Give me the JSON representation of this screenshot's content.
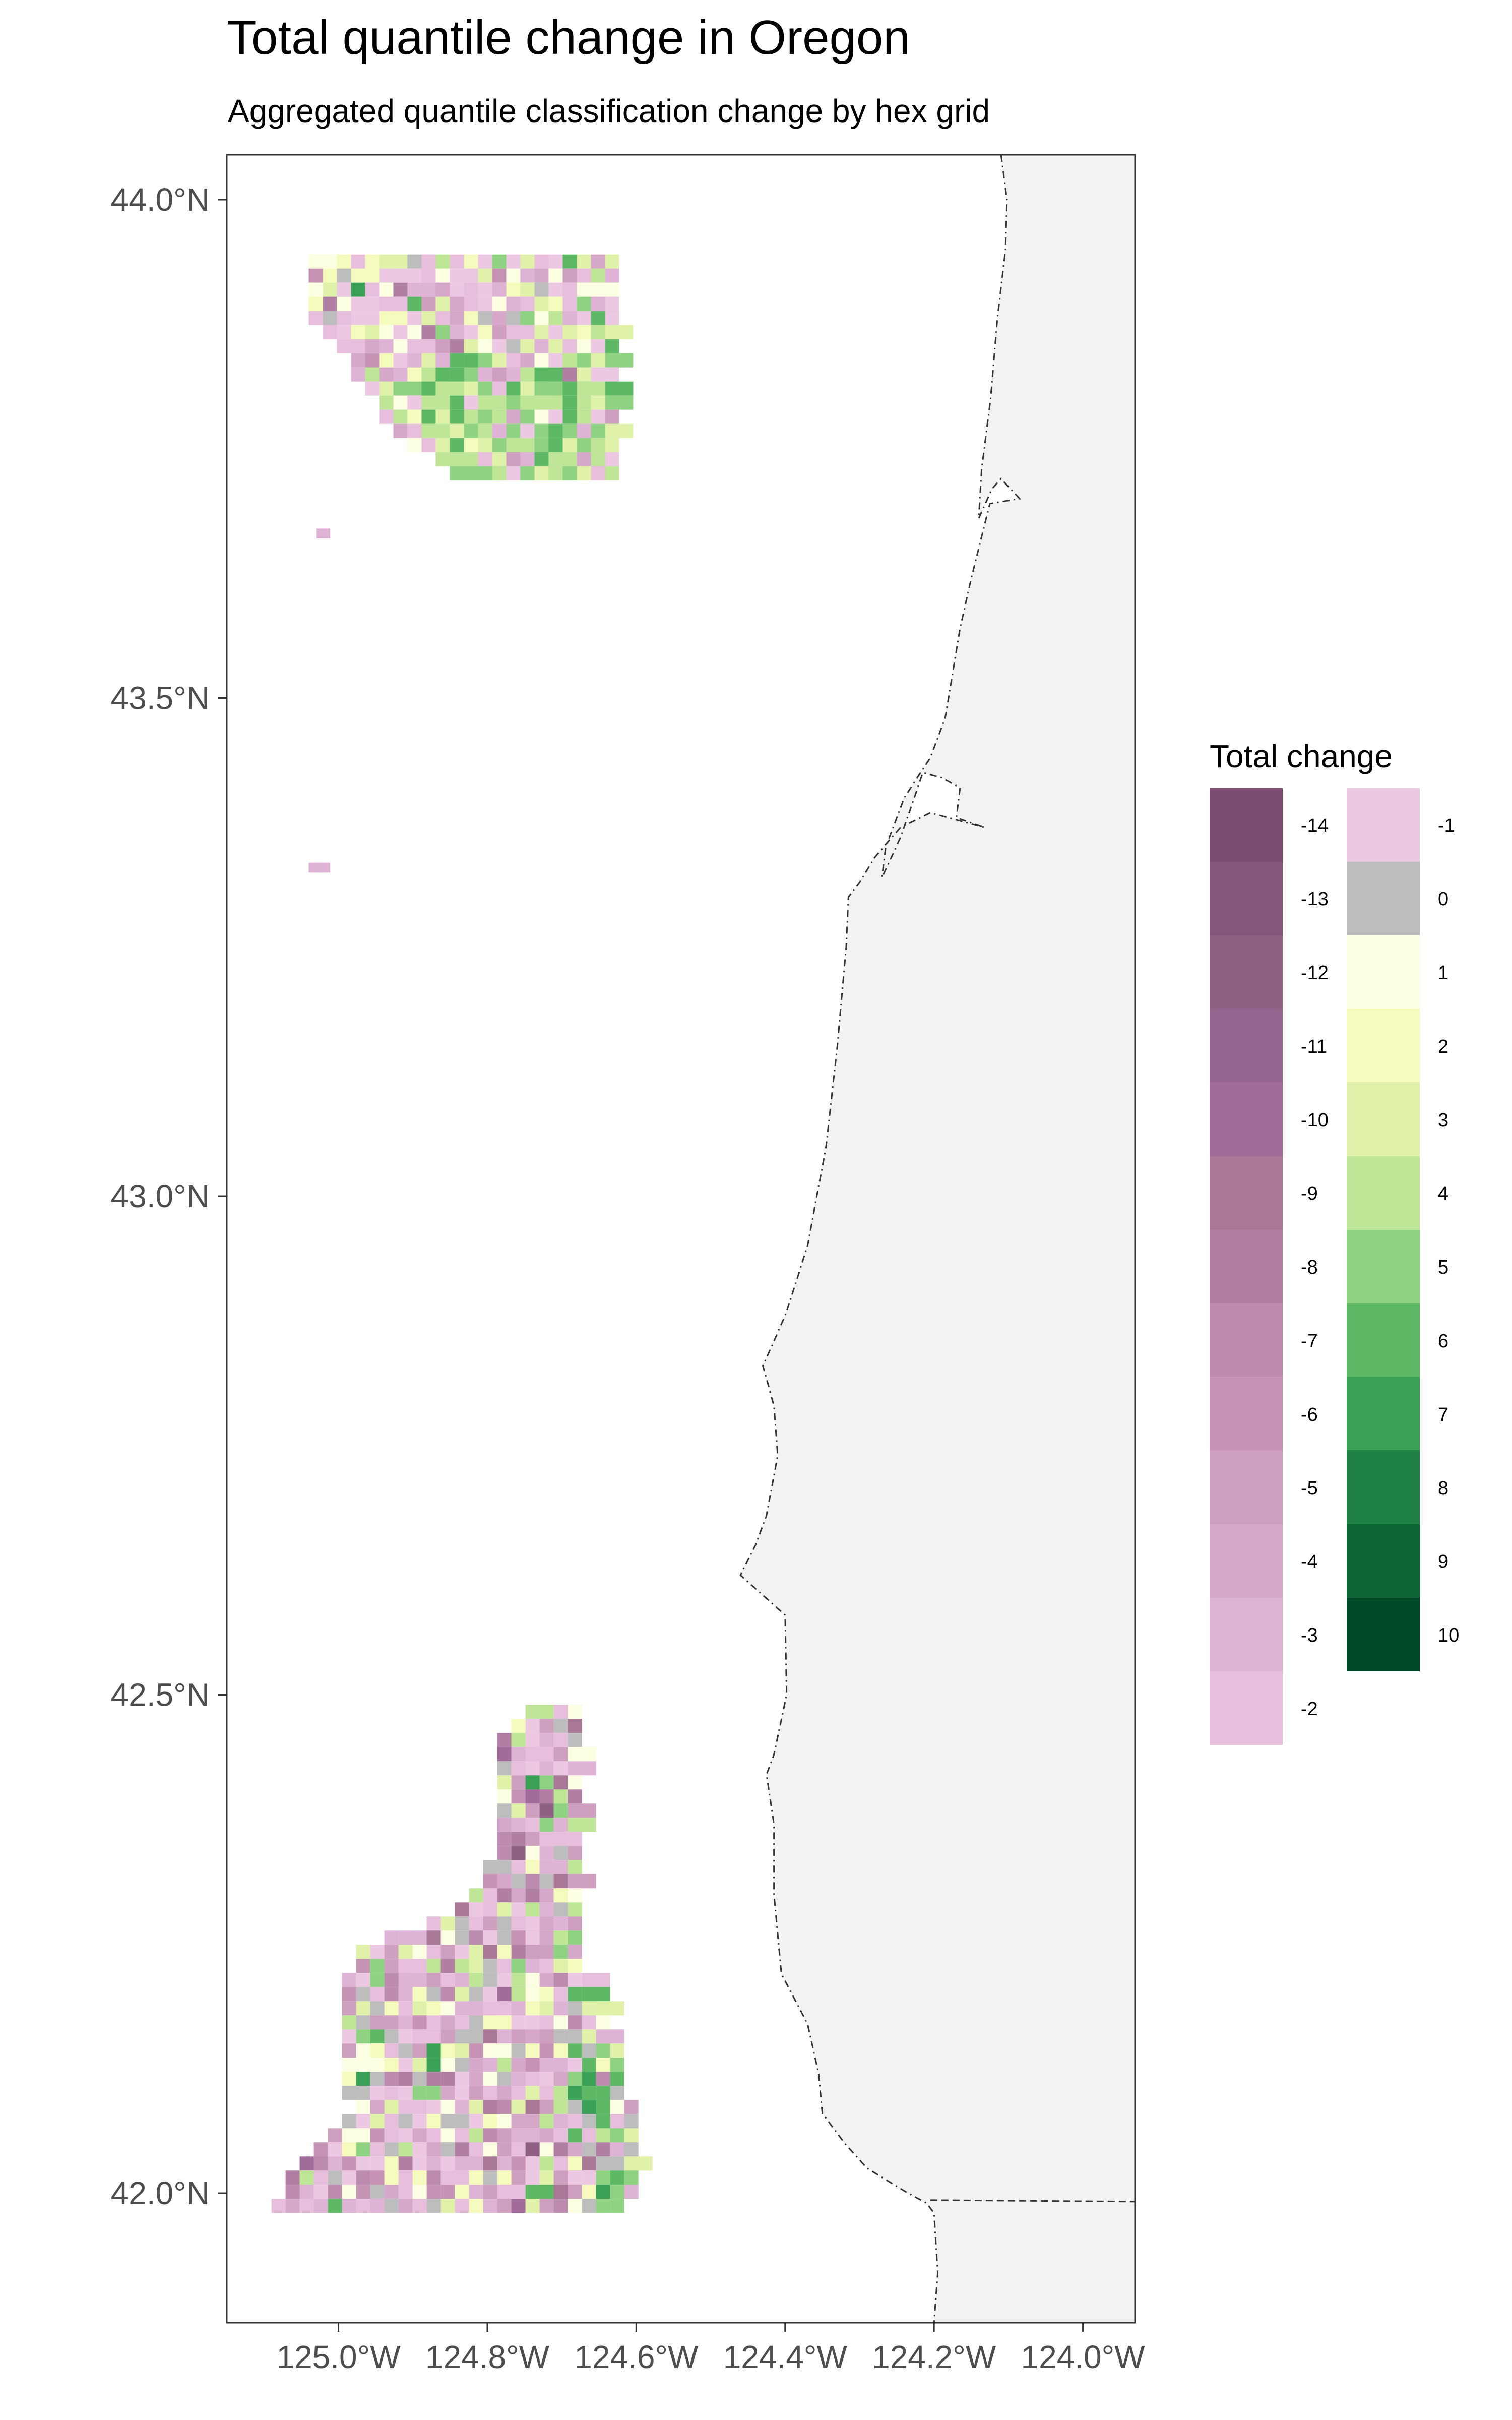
{
  "chart_data": {
    "type": "heatmap",
    "title": "Total quantile change in Oregon",
    "subtitle": "Aggregated quantile classification change by hex grid",
    "xlim": [
      -125.15,
      -123.93
    ],
    "ylim": [
      41.87,
      44.045
    ],
    "x_ticks": [
      -125.0,
      -124.8,
      -124.6,
      -124.4,
      -124.2,
      -124.0
    ],
    "x_tick_labels": [
      "125.0°W",
      "124.8°W",
      "124.6°W",
      "124.4°W",
      "124.2°W",
      "124.0°W"
    ],
    "y_ticks": [
      42.0,
      42.5,
      43.0,
      43.5,
      44.0
    ],
    "y_tick_labels": [
      "42.0°N",
      "42.5°N",
      "43.0°N",
      "43.5°N",
      "44.0°N"
    ],
    "grid": false,
    "legend": {
      "title": "Total change",
      "placement": "right",
      "entries": [
        {
          "label": "-14",
          "value": -14,
          "color": "#7b4a72"
        },
        {
          "label": "-13",
          "value": -13,
          "color": "#85557c"
        },
        {
          "label": "-12",
          "value": -12,
          "color": "#8f6083"
        },
        {
          "label": "-11",
          "value": -11,
          "color": "#956590"
        },
        {
          "label": "-10",
          "value": -10,
          "color": "#a16b9a"
        },
        {
          "label": "-9",
          "value": -9,
          "color": "#a97896"
        },
        {
          "label": "-8",
          "value": -8,
          "color": "#b17fa3"
        },
        {
          "label": "-7",
          "value": -7,
          "color": "#bc8baf"
        },
        {
          "label": "-6",
          "value": -6,
          "color": "#c693b4"
        },
        {
          "label": "-5",
          "value": -5,
          "color": "#cf9fc0"
        },
        {
          "label": "-4",
          "value": -4,
          "color": "#d5a8ca"
        },
        {
          "label": "-3",
          "value": -3,
          "color": "#deb3d5"
        },
        {
          "label": "-2",
          "value": -2,
          "color": "#e8bedd"
        },
        {
          "label": "-1",
          "value": -1,
          "color": "#ecc8e3"
        },
        {
          "label": "0",
          "value": 0,
          "color": "#bdbdbd"
        },
        {
          "label": "1",
          "value": 1,
          "color": "#fdffe3"
        },
        {
          "label": "2",
          "value": 2,
          "color": "#f5fbbd"
        },
        {
          "label": "3",
          "value": 3,
          "color": "#e0f1a9"
        },
        {
          "label": "4",
          "value": 4,
          "color": "#bfe596"
        },
        {
          "label": "5",
          "value": 5,
          "color": "#8fd282"
        },
        {
          "label": "6",
          "value": 6,
          "color": "#5db966"
        },
        {
          "label": "7",
          "value": 7,
          "color": "#39a056"
        },
        {
          "label": "8",
          "value": 8,
          "color": "#1f8043"
        },
        {
          "label": "9",
          "value": 9,
          "color": "#0b6634"
        },
        {
          "label": "10",
          "value": 10,
          "color": "#004a27"
        }
      ]
    },
    "map_features": {
      "land_fill": "#f2f2f2",
      "boundary_style": "dashed",
      "coastline": [
        [
          -124.11,
          44.045
        ],
        [
          -124.102,
          44.0
        ],
        [
          -124.104,
          43.95
        ],
        [
          -124.115,
          43.88
        ],
        [
          -124.124,
          43.8
        ],
        [
          -124.136,
          43.73
        ],
        [
          -124.14,
          43.68
        ],
        [
          -124.122,
          43.71
        ],
        [
          -124.11,
          43.72
        ],
        [
          -124.085,
          43.7
        ],
        [
          -124.125,
          43.695
        ],
        [
          -124.15,
          43.62
        ],
        [
          -124.165,
          43.57
        ],
        [
          -124.185,
          43.48
        ],
        [
          -124.205,
          43.44
        ],
        [
          -124.24,
          43.4
        ],
        [
          -124.265,
          43.35
        ],
        [
          -124.27,
          43.32
        ],
        [
          -124.245,
          43.36
        ],
        [
          -124.215,
          43.425
        ],
        [
          -124.19,
          43.42
        ],
        [
          -124.165,
          43.41
        ],
        [
          -124.17,
          43.38
        ],
        [
          -124.132,
          43.37
        ],
        [
          -124.205,
          43.385
        ],
        [
          -124.245,
          43.37
        ],
        [
          -124.28,
          43.34
        ],
        [
          -124.3,
          43.315
        ],
        [
          -124.315,
          43.3
        ],
        [
          -124.318,
          43.25
        ],
        [
          -124.33,
          43.15
        ],
        [
          -124.345,
          43.05
        ],
        [
          -124.37,
          42.95
        ],
        [
          -124.4,
          42.88
        ],
        [
          -124.43,
          42.83
        ],
        [
          -124.415,
          42.79
        ],
        [
          -124.41,
          42.74
        ],
        [
          -124.425,
          42.68
        ],
        [
          -124.44,
          42.65
        ],
        [
          -124.46,
          42.62
        ],
        [
          -124.4,
          42.58
        ],
        [
          -124.398,
          42.5
        ],
        [
          -124.415,
          42.44
        ],
        [
          -124.425,
          42.42
        ],
        [
          -124.415,
          42.37
        ],
        [
          -124.415,
          42.3
        ],
        [
          -124.405,
          42.22
        ],
        [
          -124.37,
          42.17
        ],
        [
          -124.355,
          42.12
        ],
        [
          -124.35,
          42.08
        ],
        [
          -124.32,
          42.05
        ],
        [
          -124.29,
          42.025
        ],
        [
          -124.235,
          42.0
        ],
        [
          -124.21,
          41.99
        ],
        [
          -124.2,
          41.98
        ],
        [
          -124.195,
          41.92
        ],
        [
          -124.2,
          41.87
        ]
      ],
      "state_border_latitude": 41.993
    }
  }
}
